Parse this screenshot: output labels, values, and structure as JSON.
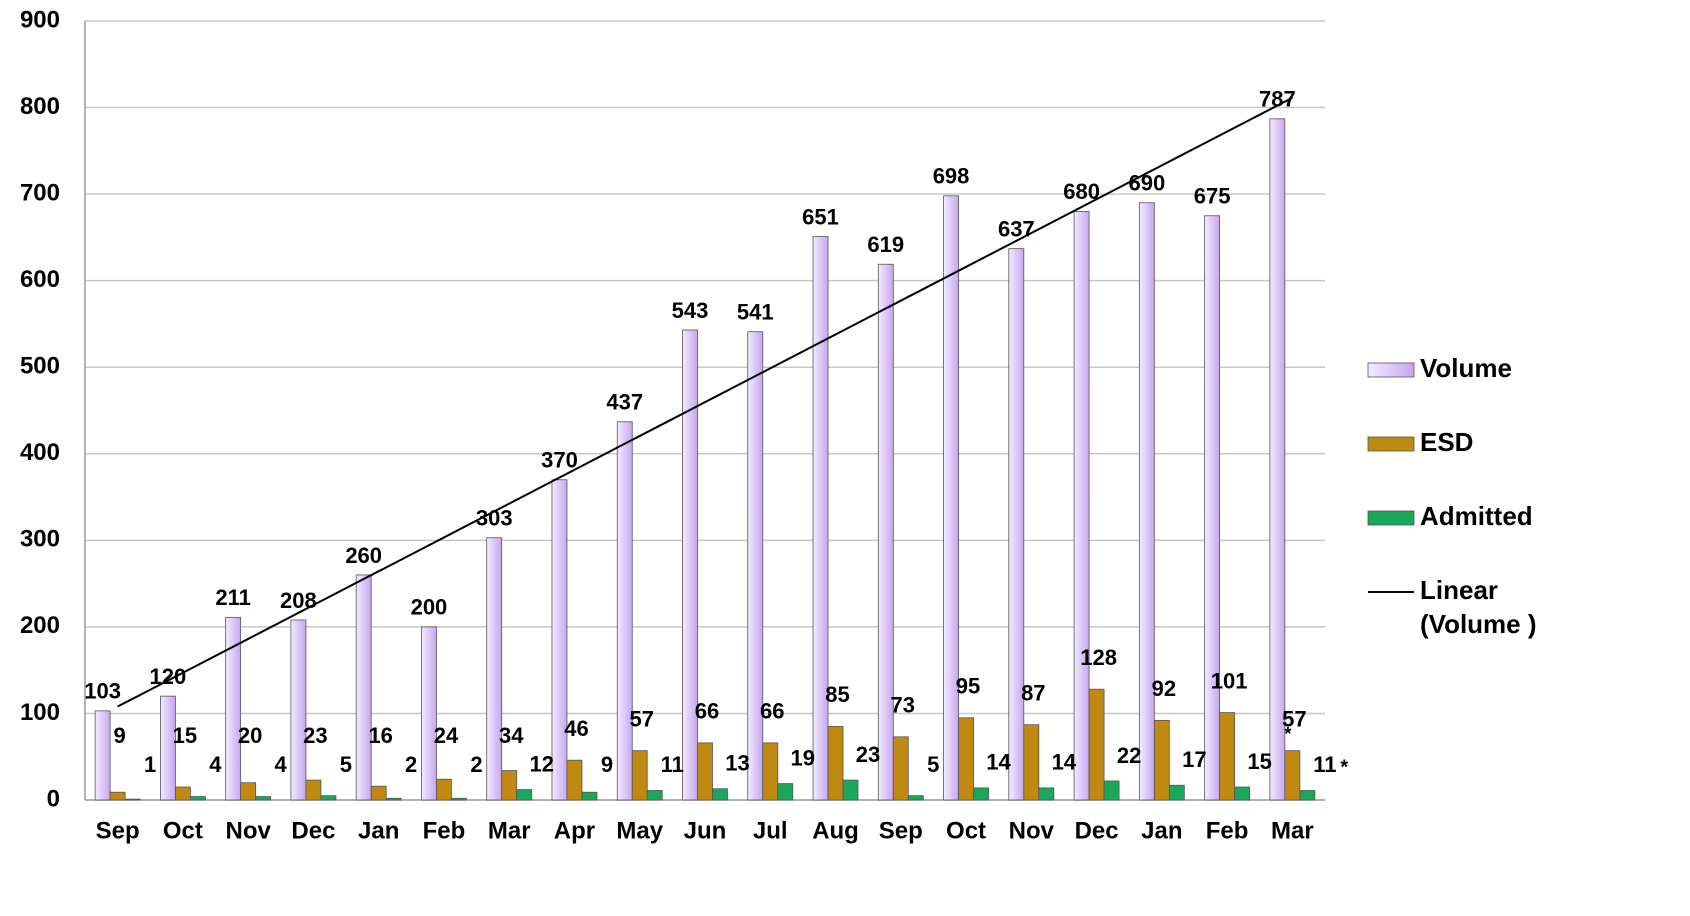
{
  "chart_data": {
    "type": "bar",
    "categories": [
      "Sep",
      "Oct",
      "Nov",
      "Dec",
      "Jan",
      "Feb",
      "Mar",
      "Apr",
      "May",
      "Jun",
      "Jul",
      "Aug",
      "Sep",
      "Oct",
      "Nov",
      "Dec",
      "Jan",
      "Feb",
      "Mar"
    ],
    "series": [
      {
        "name": "Volume",
        "color": "#c6a6f0",
        "values": [
          103,
          120,
          211,
          208,
          260,
          200,
          303,
          370,
          437,
          543,
          541,
          651,
          619,
          698,
          637,
          680,
          690,
          675,
          787
        ]
      },
      {
        "name": "ESD",
        "color": "#c08a12",
        "values": [
          9,
          15,
          20,
          23,
          16,
          24,
          34,
          46,
          57,
          66,
          66,
          85,
          73,
          95,
          87,
          128,
          92,
          101,
          57
        ]
      },
      {
        "name": "Admitted",
        "color": "#19a85a",
        "values": [
          1,
          4,
          4,
          5,
          2,
          2,
          12,
          9,
          11,
          13,
          19,
          23,
          5,
          14,
          14,
          22,
          17,
          15,
          11
        ]
      }
    ],
    "trendline": {
      "name": "Linear (Volume )",
      "color": "#000000"
    },
    "annotations": [
      "*",
      "*"
    ],
    "ylim": [
      0,
      900
    ],
    "yticks": [
      0,
      100,
      200,
      300,
      400,
      500,
      600,
      700,
      800,
      900
    ],
    "grid": true,
    "legend": "right"
  }
}
